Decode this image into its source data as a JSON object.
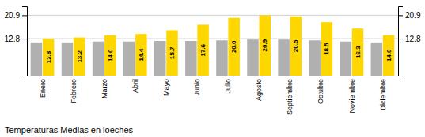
{
  "chart_data": {
    "type": "bar",
    "title": "Temperaturas Medias en loeches",
    "categories": [
      "Enero",
      "Febrero",
      "Marzo",
      "Abril",
      "Mayo",
      "Junio",
      "Julio",
      "Agosto",
      "Septiembre",
      "Octubre",
      "Noviembre",
      "Diciembre"
    ],
    "series": [
      {
        "color": "#B0B0B0",
        "values": [
          11.5,
          11.5,
          11.8,
          11.8,
          12.0,
          12.0,
          12.2,
          12.5,
          12.5,
          12.2,
          11.8,
          11.5
        ]
      },
      {
        "color": "#FFD700",
        "values": [
          12.8,
          13.2,
          14.0,
          14.4,
          15.7,
          17.6,
          20.0,
          20.9,
          20.5,
          18.5,
          16.3,
          14.0
        ],
        "value_labels": [
          "12.8",
          "13.2",
          "14.0",
          "14.4",
          "15.7",
          "17.6",
          "20.0",
          "20.9",
          "20.5",
          "18.5",
          "16.3",
          "14.0"
        ],
        "data_labels": true
      }
    ],
    "ylim": [
      0,
      24
    ],
    "yticks": [
      12.8,
      20.9
    ],
    "grid": true
  }
}
